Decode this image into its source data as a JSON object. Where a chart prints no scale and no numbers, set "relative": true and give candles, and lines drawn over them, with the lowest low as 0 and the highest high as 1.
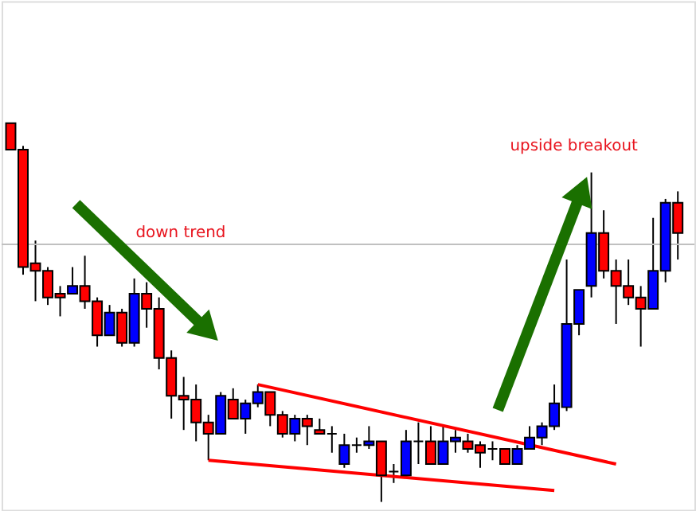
{
  "chart_data": {
    "type": "candlestick",
    "relative": true,
    "categories": [
      null,
      null,
      null,
      null,
      null,
      null,
      null,
      null,
      null,
      null,
      null,
      null,
      null,
      null,
      null,
      null,
      null,
      null,
      null,
      null,
      null,
      null,
      null,
      null,
      null,
      null,
      null,
      null,
      null,
      null,
      null,
      null,
      null,
      null,
      null,
      null,
      null,
      null,
      null,
      null,
      null,
      null,
      null,
      null,
      null,
      null,
      null,
      null,
      null,
      null,
      null,
      null,
      null,
      null,
      null
    ],
    "ohlc": [
      [
        1.0,
        1.0,
        0.93,
        0.93
      ],
      [
        0.93,
        0.94,
        0.6,
        0.62
      ],
      [
        0.63,
        0.69,
        0.53,
        0.61
      ],
      [
        0.61,
        0.62,
        0.52,
        0.54
      ],
      [
        0.55,
        0.57,
        0.49,
        0.54
      ],
      [
        0.55,
        0.62,
        0.55,
        0.57
      ],
      [
        0.57,
        0.65,
        0.51,
        0.53
      ],
      [
        0.53,
        0.54,
        0.41,
        0.44
      ],
      [
        0.44,
        0.52,
        0.44,
        0.5
      ],
      [
        0.5,
        0.51,
        0.41,
        0.42
      ],
      [
        0.42,
        0.59,
        0.41,
        0.55
      ],
      [
        0.55,
        0.58,
        0.46,
        0.51
      ],
      [
        0.51,
        0.54,
        0.35,
        0.38
      ],
      [
        0.38,
        0.4,
        0.22,
        0.28
      ],
      [
        0.28,
        0.33,
        0.19,
        0.27
      ],
      [
        0.27,
        0.31,
        0.16,
        0.21
      ],
      [
        0.21,
        0.23,
        0.11,
        0.18
      ],
      [
        0.18,
        0.29,
        0.18,
        0.28
      ],
      [
        0.27,
        0.3,
        0.22,
        0.22
      ],
      [
        0.22,
        0.27,
        0.18,
        0.26
      ],
      [
        0.26,
        0.31,
        0.25,
        0.29
      ],
      [
        0.29,
        0.29,
        0.2,
        0.23
      ],
      [
        0.23,
        0.24,
        0.17,
        0.18
      ],
      [
        0.18,
        0.23,
        0.16,
        0.22
      ],
      [
        0.22,
        0.23,
        0.15,
        0.2
      ],
      [
        0.19,
        0.22,
        0.18,
        0.18
      ],
      [
        0.18,
        0.2,
        0.13,
        0.18
      ],
      [
        0.1,
        0.18,
        0.09,
        0.15
      ],
      [
        0.15,
        0.17,
        0.13,
        0.15
      ],
      [
        0.15,
        0.2,
        0.14,
        0.16
      ],
      [
        0.16,
        0.16,
        0.0,
        0.07
      ],
      [
        0.08,
        0.1,
        0.05,
        0.08
      ],
      [
        0.07,
        0.19,
        0.07,
        0.16
      ],
      [
        0.16,
        0.21,
        0.1,
        0.16
      ],
      [
        0.16,
        0.2,
        0.1,
        0.1
      ],
      [
        0.1,
        0.2,
        0.1,
        0.16
      ],
      [
        0.16,
        0.19,
        0.13,
        0.17
      ],
      [
        0.16,
        0.18,
        0.13,
        0.14
      ],
      [
        0.15,
        0.16,
        0.09,
        0.13
      ],
      [
        0.14,
        0.16,
        0.11,
        0.14
      ],
      [
        0.14,
        0.14,
        0.1,
        0.1
      ],
      [
        0.1,
        0.15,
        0.1,
        0.14
      ],
      [
        0.14,
        0.2,
        0.14,
        0.17
      ],
      [
        0.17,
        0.21,
        0.15,
        0.2
      ],
      [
        0.2,
        0.31,
        0.19,
        0.26
      ],
      [
        0.25,
        0.64,
        0.24,
        0.47
      ],
      [
        0.47,
        0.56,
        0.44,
        0.56
      ],
      [
        0.57,
        0.87,
        0.54,
        0.71
      ],
      [
        0.71,
        0.77,
        0.59,
        0.61
      ],
      [
        0.61,
        0.64,
        0.47,
        0.57
      ],
      [
        0.57,
        0.64,
        0.52,
        0.54
      ],
      [
        0.54,
        0.57,
        0.41,
        0.51
      ],
      [
        0.51,
        0.75,
        0.51,
        0.61
      ],
      [
        0.61,
        0.8,
        0.58,
        0.79
      ],
      [
        0.79,
        0.82,
        0.64,
        0.71
      ]
    ],
    "colors": [
      "#ff0000",
      "#ff0000",
      "#ff0000",
      "#ff0000",
      "#ff0000",
      "#0000ff",
      "#ff0000",
      "#ff0000",
      "#0000ff",
      "#ff0000",
      "#0000ff",
      "#ff0000",
      "#ff0000",
      "#ff0000",
      "#ff0000",
      "#ff0000",
      "#ff0000",
      "#0000ff",
      "#ff0000",
      "#0000ff",
      "#0000ff",
      "#ff0000",
      "#ff0000",
      "#0000ff",
      "#ff0000",
      "#ff0000",
      "#000000",
      "#0000ff",
      "#000000",
      "#0000ff",
      "#ff0000",
      "#000000",
      "#0000ff",
      "#000000",
      "#ff0000",
      "#0000ff",
      "#0000ff",
      "#ff0000",
      "#ff0000",
      "#000000",
      "#ff0000",
      "#0000ff",
      "#0000ff",
      "#0000ff",
      "#0000ff",
      "#0000ff",
      "#0000ff",
      "#0000ff",
      "#ff0000",
      "#ff0000",
      "#ff0000",
      "#ff0000",
      "#0000ff",
      "#0000ff",
      "#ff0000"
    ],
    "series": [
      {
        "type": "line",
        "color": "#ff0000",
        "values": [
          null,
          null,
          null,
          null,
          null,
          null,
          null,
          null,
          null,
          null,
          null,
          null,
          null,
          null,
          null,
          null,
          null,
          null,
          null,
          null,
          0.31,
          null,
          null,
          null,
          null,
          null,
          null,
          null,
          null,
          null,
          null,
          null,
          null,
          null,
          null,
          null,
          null,
          null,
          null,
          null,
          null,
          null,
          null,
          null,
          null,
          null,
          null,
          null,
          null,
          0.1,
          null,
          null,
          null,
          null,
          null
        ]
      },
      {
        "type": "line",
        "color": "#ff0000",
        "values": [
          null,
          null,
          null,
          null,
          null,
          null,
          null,
          null,
          null,
          null,
          null,
          null,
          null,
          null,
          null,
          null,
          0.11,
          null,
          null,
          null,
          null,
          null,
          null,
          null,
          null,
          null,
          null,
          null,
          null,
          null,
          null,
          null,
          null,
          null,
          null,
          null,
          null,
          null,
          null,
          null,
          null,
          null,
          null,
          null,
          0.03,
          null,
          null,
          null,
          null,
          null,
          null,
          null,
          null,
          null,
          null
        ]
      }
    ],
    "ref_lines": [
      {
        "axis": "y",
        "value": 0.68,
        "color": "#c0c0c0"
      }
    ],
    "annotations": [
      "down trend",
      "upside breakout"
    ]
  }
}
